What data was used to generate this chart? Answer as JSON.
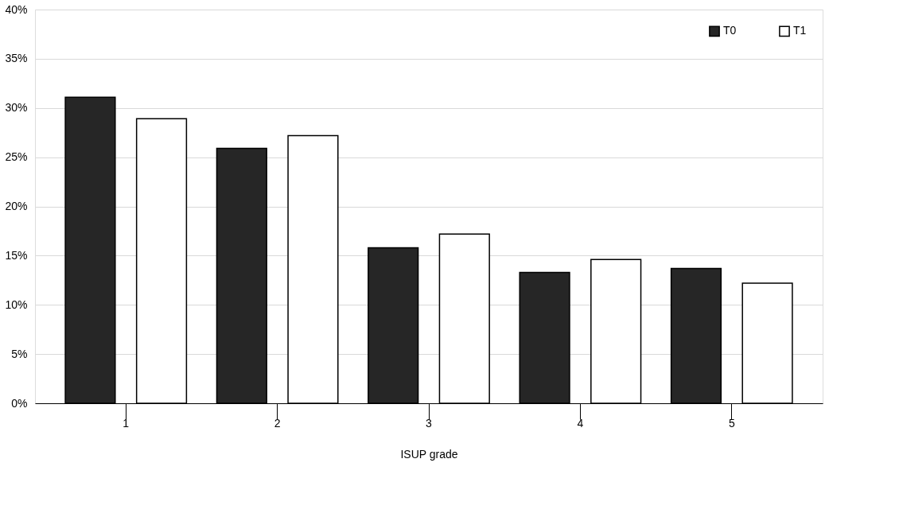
{
  "chart_data": {
    "type": "bar",
    "xlabel": "ISUP grade",
    "categories": [
      "1",
      "2",
      "3",
      "4",
      "5"
    ],
    "series": [
      {
        "name": "T0",
        "color": "#262626",
        "values": [
          31.1,
          25.9,
          15.8,
          13.3,
          13.7
        ]
      },
      {
        "name": "T1",
        "color": "#ffffff",
        "values": [
          28.9,
          27.2,
          17.2,
          14.6,
          12.2
        ]
      }
    ],
    "ylim": [
      0,
      40
    ],
    "yticks": [
      {
        "value": 0,
        "label": "0%"
      },
      {
        "value": 5,
        "label": "5%"
      },
      {
        "value": 10,
        "label": "10%"
      },
      {
        "value": 15,
        "label": "15%"
      },
      {
        "value": 20,
        "label": "20%"
      },
      {
        "value": 25,
        "label": "25%"
      },
      {
        "value": 30,
        "label": "30%"
      },
      {
        "value": 35,
        "label": "35%"
      },
      {
        "value": 40,
        "label": "40%"
      }
    ],
    "grid": "y",
    "legend": "top right"
  }
}
